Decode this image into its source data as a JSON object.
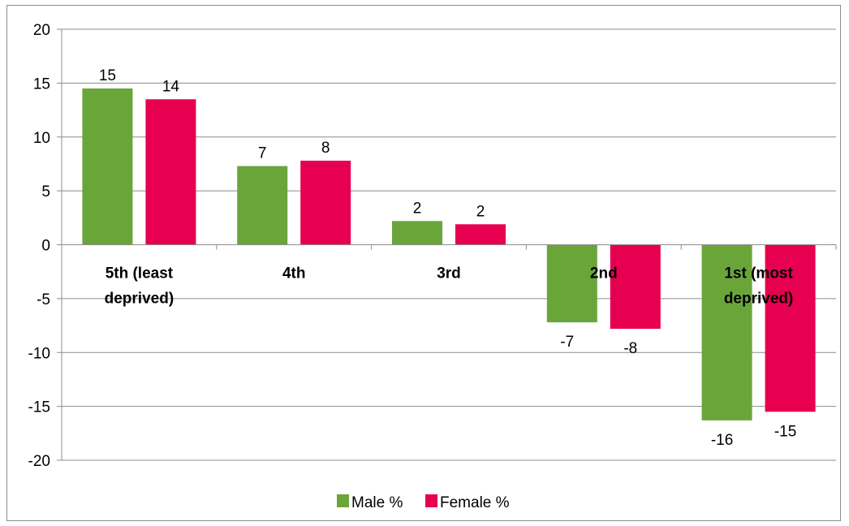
{
  "chart_data": {
    "type": "bar",
    "categories": [
      [
        "5th (least",
        "deprived)"
      ],
      [
        "4th"
      ],
      [
        "3rd"
      ],
      [
        "2nd"
      ],
      [
        "1st (most",
        "deprived)"
      ]
    ],
    "series": [
      {
        "name": "Male %",
        "values": [
          14.5,
          7.3,
          2.2,
          -7.2,
          -16.3
        ],
        "labels": [
          "15",
          "7",
          "2",
          "-7",
          "-16"
        ],
        "color": "#6aa53a"
      },
      {
        "name": "Female %",
        "values": [
          13.5,
          7.8,
          1.9,
          -7.8,
          -15.5
        ],
        "labels": [
          "14",
          "8",
          "2",
          "-8",
          "-15"
        ],
        "color": "#e6004f"
      }
    ],
    "ylim": [
      -20,
      20
    ],
    "yticks": [
      20,
      15,
      10,
      5,
      0,
      -5,
      -10,
      -15,
      -20
    ],
    "grid": true,
    "legend": "bottom",
    "gridline_color": "#8c8c8c"
  }
}
